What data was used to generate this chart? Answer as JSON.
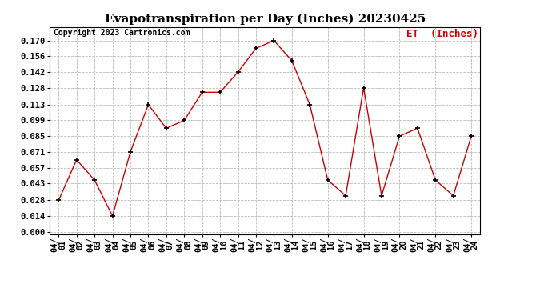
{
  "title": "Evapotranspiration per Day (Inches) 20230425",
  "copyright": "Copyright 2023 Cartronics.com",
  "legend_label": "ET  (Inches)",
  "dates": [
    "04/01",
    "04/02",
    "04/03",
    "04/04",
    "04/05",
    "04/06",
    "04/07",
    "04/08",
    "04/09",
    "04/10",
    "04/11",
    "04/12",
    "04/13",
    "04/14",
    "04/15",
    "04/16",
    "04/17",
    "04/18",
    "04/19",
    "04/20",
    "04/21",
    "04/22",
    "04/23",
    "04/24"
  ],
  "values": [
    0.028,
    0.064,
    0.046,
    0.014,
    0.071,
    0.113,
    0.092,
    0.099,
    0.124,
    0.124,
    0.142,
    0.163,
    0.17,
    0.152,
    0.113,
    0.046,
    0.032,
    0.128,
    0.032,
    0.085,
    0.092,
    0.046,
    0.032,
    0.085
  ],
  "yticks": [
    0.0,
    0.014,
    0.028,
    0.043,
    0.057,
    0.071,
    0.085,
    0.099,
    0.113,
    0.128,
    0.142,
    0.156,
    0.17
  ],
  "ylim": [
    -0.002,
    0.182
  ],
  "line_color": "#cc0000",
  "marker_color": "#000000",
  "legend_color": "#cc0000",
  "background_color": "#ffffff",
  "grid_color": "#bbbbbb",
  "copyright_color": "#000000",
  "title_fontsize": 11,
  "copyright_fontsize": 7,
  "legend_fontsize": 9,
  "tick_fontsize": 7.5
}
